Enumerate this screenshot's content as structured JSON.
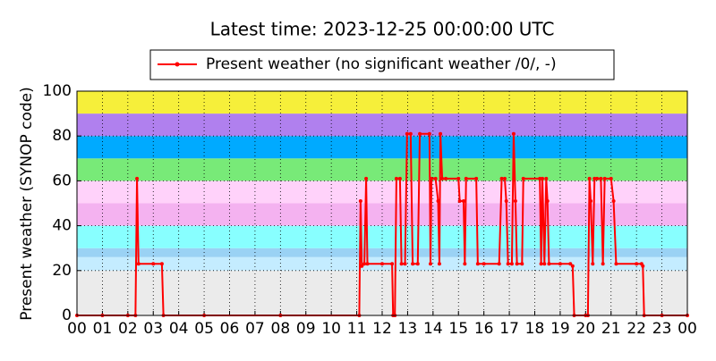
{
  "chart_data": {
    "type": "line",
    "title": "Latest time: 2023-12-25 00:00:00 UTC",
    "y_label": "Present weather (SYNOP code)",
    "xlim": [
      0,
      24
    ],
    "ylim": [
      0,
      100
    ],
    "xticks": [
      {
        "value": 0,
        "label": "00"
      },
      {
        "value": 1,
        "label": "01"
      },
      {
        "value": 2,
        "label": "02"
      },
      {
        "value": 3,
        "label": "03"
      },
      {
        "value": 4,
        "label": "04"
      },
      {
        "value": 5,
        "label": "05"
      },
      {
        "value": 6,
        "label": "06"
      },
      {
        "value": 7,
        "label": "07"
      },
      {
        "value": 8,
        "label": "08"
      },
      {
        "value": 9,
        "label": "09"
      },
      {
        "value": 10,
        "label": "10"
      },
      {
        "value": 11,
        "label": "11"
      },
      {
        "value": 12,
        "label": "12"
      },
      {
        "value": 13,
        "label": "13"
      },
      {
        "value": 14,
        "label": "14"
      },
      {
        "value": 15,
        "label": "15"
      },
      {
        "value": 16,
        "label": "16"
      },
      {
        "value": 17,
        "label": "17"
      },
      {
        "value": 18,
        "label": "18"
      },
      {
        "value": 19,
        "label": "19"
      },
      {
        "value": 20,
        "label": "20"
      },
      {
        "value": 21,
        "label": "21"
      },
      {
        "value": 22,
        "label": "22"
      },
      {
        "value": 23,
        "label": "23"
      },
      {
        "value": 24,
        "label": "00"
      }
    ],
    "yticks": [
      0,
      20,
      40,
      60,
      80,
      100
    ],
    "grid": true,
    "legend": "top",
    "bands": [
      {
        "from": 0,
        "to": 20,
        "color": "#ebebeb"
      },
      {
        "from": 20,
        "to": 26,
        "color": "#c4ecff"
      },
      {
        "from": 26,
        "to": 30,
        "color": "#9ad2f4"
      },
      {
        "from": 30,
        "to": 40,
        "color": "#88ffff"
      },
      {
        "from": 40,
        "to": 50,
        "color": "#f4b2f0"
      },
      {
        "from": 50,
        "to": 60,
        "color": "#ffd2fa"
      },
      {
        "from": 60,
        "to": 70,
        "color": "#78ea78"
      },
      {
        "from": 70,
        "to": 80,
        "color": "#00aaff"
      },
      {
        "from": 80,
        "to": 90,
        "color": "#b080ee"
      },
      {
        "from": 90,
        "to": 100,
        "color": "#f6ef3a"
      }
    ],
    "x": [
      0,
      1,
      2,
      2.3,
      2.36,
      2.42,
      3,
      3.34,
      3.4,
      5,
      8,
      11.1,
      11.15,
      11.2,
      11.3,
      11.37,
      11.42,
      12,
      12.39,
      12.43,
      12.5,
      12.56,
      12.7,
      12.76,
      12.9,
      12.98,
      13.12,
      13.2,
      13.4,
      13.48,
      13.86,
      13.9,
      13.94,
      14.1,
      14.2,
      14.25,
      14.29,
      14.36,
      14.5,
      15,
      15.05,
      15.2,
      15.25,
      15.3,
      15.7,
      15.76,
      16,
      16.6,
      16.7,
      16.82,
      16.88,
      16.95,
      17.1,
      17.17,
      17.24,
      17.3,
      17.5,
      17.55,
      18.2,
      18.25,
      18.3,
      18.38,
      18.45,
      18.5,
      18.56,
      19,
      19.4,
      19.49,
      19.55,
      20,
      20.09,
      20.15,
      20.2,
      20.28,
      20.35,
      20.45,
      20.6,
      20.68,
      20.75,
      21,
      21.1,
      21.2,
      22,
      22.2,
      22.25,
      22.3,
      23,
      24
    ],
    "series": [
      {
        "name": "Present weather (no significant weather /0/, -)",
        "color": "#ff0000",
        "values": [
          0,
          0,
          0,
          0,
          61,
          23,
          23,
          23,
          0,
          0,
          0,
          0,
          51,
          22,
          23,
          61,
          23,
          23,
          23,
          0,
          0,
          61,
          61,
          23,
          23,
          81,
          81,
          23,
          23,
          81,
          81,
          23,
          61,
          61,
          51,
          23,
          81,
          61,
          61,
          61,
          51,
          51,
          23,
          61,
          61,
          23,
          23,
          23,
          61,
          61,
          51,
          23,
          23,
          81,
          51,
          23,
          23,
          61,
          61,
          23,
          61,
          23,
          61,
          51,
          23,
          23,
          23,
          22,
          0,
          0,
          0,
          61,
          51,
          23,
          61,
          61,
          61,
          23,
          61,
          61,
          51,
          23,
          23,
          23,
          22,
          0,
          0,
          0
        ]
      }
    ]
  }
}
